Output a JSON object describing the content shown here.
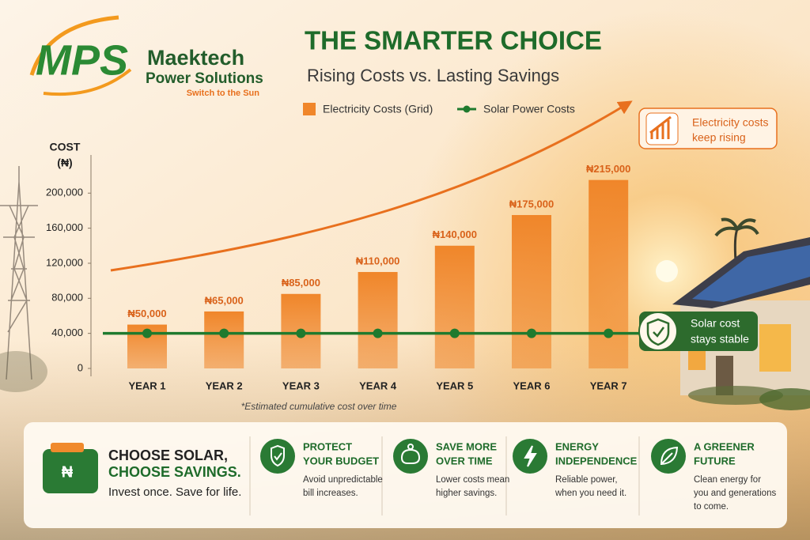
{
  "logo": {
    "mark": "MPS",
    "name": "Maektech",
    "subname": "Power Solutions",
    "tagline": "Switch to the Sun"
  },
  "title": "THE SMARTER CHOICE",
  "subtitle": "Rising Costs vs. Lasting Savings",
  "chart_data": {
    "type": "bar",
    "y_label": [
      "COST",
      "(₦)"
    ],
    "categories": [
      "YEAR 1",
      "YEAR 2",
      "YEAR 3",
      "YEAR 4",
      "YEAR 5",
      "YEAR 6",
      "YEAR 7"
    ],
    "series": [
      {
        "name": "Electricity Costs (Grid)",
        "type": "bar",
        "color": "#f0862a",
        "values": [
          50000,
          65000,
          85000,
          110000,
          140000,
          175000,
          215000
        ],
        "value_labels": [
          "₦50,000",
          "₦65,000",
          "₦85,000",
          "₦110,000",
          "₦140,000",
          "₦175,000",
          "₦215,000"
        ]
      },
      {
        "name": "Solar Power Costs",
        "type": "line",
        "color": "#1f7a2e",
        "values": [
          40000,
          40000,
          40000,
          40000,
          40000,
          40000,
          40000
        ]
      }
    ],
    "ylim": [
      0,
      230000
    ],
    "yticks": [
      0,
      {
        "value": 40000,
        "label": "40,000"
      },
      {
        "value": 80000,
        "label": "80,000"
      },
      {
        "value": 120000,
        "label": "120,000"
      },
      {
        "value": 160000,
        "label": "160,000"
      },
      {
        "value": 200000,
        "label": "200,000"
      }
    ],
    "legend": "top",
    "footnote": "*Estimated cumulative cost over time"
  },
  "callouts": [
    {
      "lines": [
        "Electricity costs",
        "keep rising"
      ]
    },
    {
      "lines": [
        "Solar cost",
        "stays stable"
      ]
    }
  ],
  "panel": {
    "wallet_symbol": "₦",
    "headline": [
      "CHOOSE SOLAR,",
      "CHOOSE SAVINGS."
    ],
    "slogan": "Invest once. Save for life.",
    "features": [
      {
        "title": [
          "PROTECT",
          "YOUR BUDGET"
        ],
        "text": [
          "Avoid unpredictable",
          "bill increases."
        ]
      },
      {
        "title": [
          "SAVE MORE",
          "OVER TIME"
        ],
        "text": [
          "Lower costs mean",
          "higher savings."
        ]
      },
      {
        "title": [
          "ENERGY",
          "INDEPENDENCE"
        ],
        "text": [
          "Reliable power,",
          "when you need it."
        ]
      },
      {
        "title": [
          "A GREENER",
          "FUTURE"
        ],
        "text": [
          "Clean energy for",
          "you and generations",
          "to come."
        ]
      }
    ]
  }
}
